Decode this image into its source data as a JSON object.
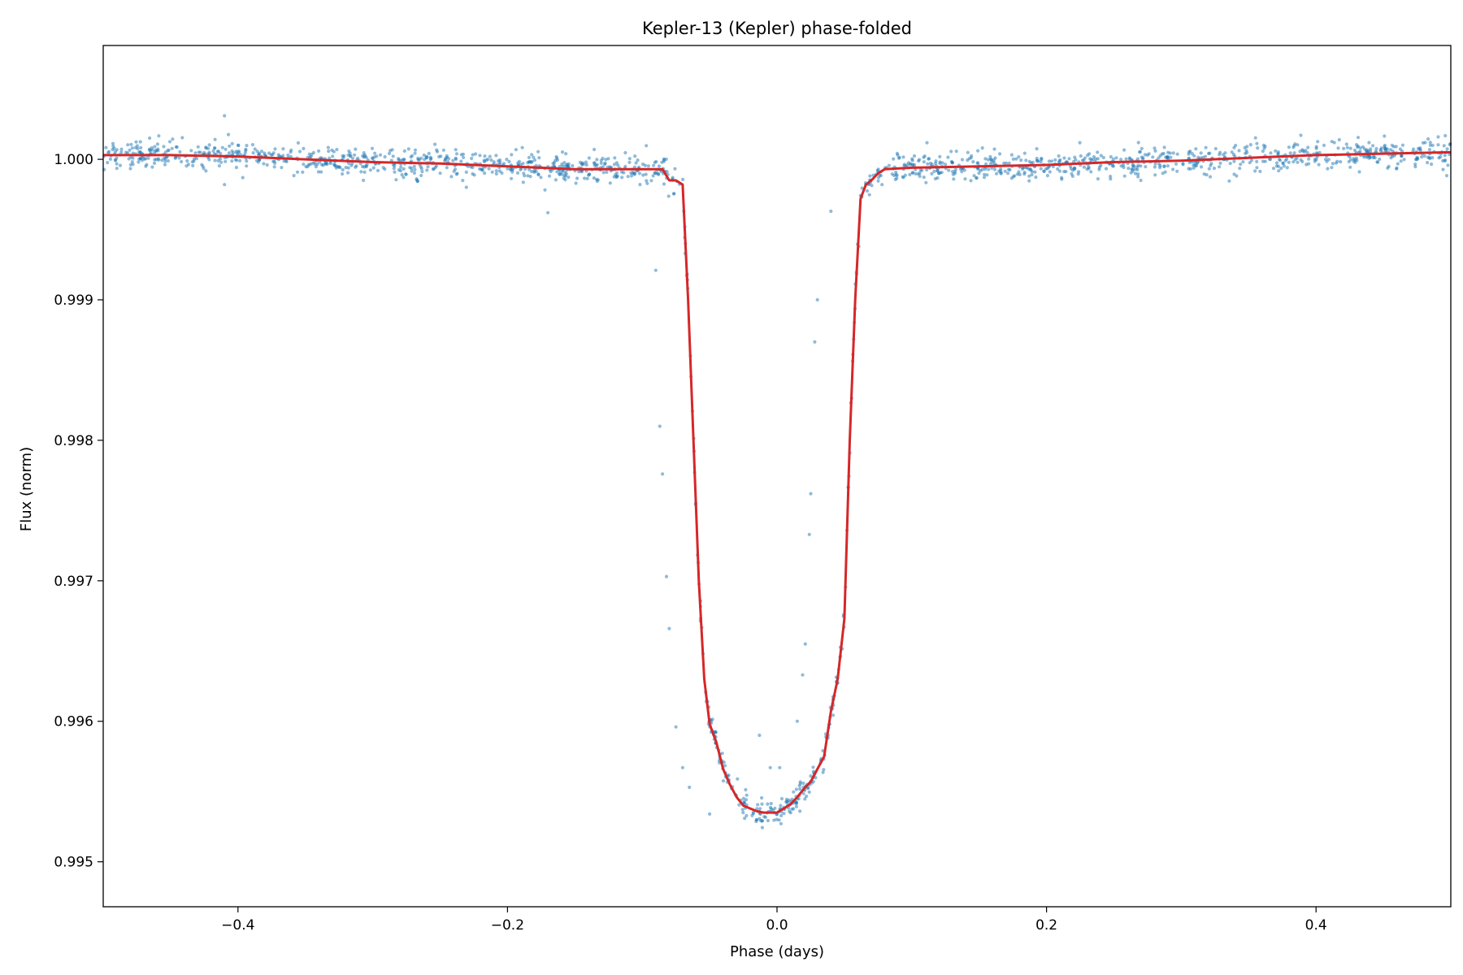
{
  "chart_data": {
    "type": "scatter",
    "title": "Kepler-13 (Kepler) phase-folded",
    "xlabel": "Phase (days)",
    "ylabel": "Flux (norm)",
    "xlim": [
      -0.5,
      0.5
    ],
    "ylim": [
      0.99468,
      1.00081
    ],
    "grid": false,
    "x_ticks": [
      -0.4,
      -0.2,
      0.0,
      0.2,
      0.4
    ],
    "x_tick_labels": [
      "−0.4",
      "−0.2",
      "0.0",
      "0.2",
      "0.4"
    ],
    "y_ticks": [
      0.995,
      0.996,
      0.997,
      0.998,
      0.999,
      1.0
    ],
    "y_tick_labels": [
      "0.995",
      "0.996",
      "0.997",
      "0.998",
      "0.999",
      "1.000"
    ],
    "series": [
      {
        "kind": "scatter",
        "color": "#1f77b4",
        "alpha": 0.5,
        "model": {
          "n_points": 1800,
          "baseline_start": 1.00003,
          "baseline_end": 1.00003,
          "baseline_dip": 0.0006,
          "noise_sigma": 5e-05,
          "transit_center": 0.0,
          "transit_depth": 0.00465,
          "ingress_start": -0.069,
          "ingress_end": -0.048,
          "egress_start": 0.048,
          "egress_end": 0.069,
          "outliers": [
            [
              -0.41,
              1.00031
            ],
            [
              -0.41,
              0.99982
            ],
            [
              -0.17,
              0.99962
            ],
            [
              -0.09,
              0.99921
            ],
            [
              -0.087,
              0.9981
            ],
            [
              -0.085,
              0.99776
            ],
            [
              -0.082,
              0.99703
            ],
            [
              -0.08,
              0.99666
            ],
            [
              -0.075,
              0.99596
            ],
            [
              -0.07,
              0.99567
            ],
            [
              -0.065,
              0.99553
            ],
            [
              -0.05,
              0.99534
            ],
            [
              0.04,
              0.99963
            ],
            [
              0.03,
              0.999
            ],
            [
              0.028,
              0.9987
            ],
            [
              0.025,
              0.99762
            ],
            [
              0.024,
              0.99733
            ],
            [
              0.021,
              0.99655
            ],
            [
              0.019,
              0.99633
            ],
            [
              0.015,
              0.996
            ],
            [
              -0.013,
              0.9959
            ],
            [
              -0.005,
              0.99567
            ],
            [
              0.002,
              0.99567
            ]
          ]
        }
      },
      {
        "kind": "line",
        "color": "#d62728",
        "x": [
          -0.5,
          -0.45,
          -0.4,
          -0.35,
          -0.3,
          -0.25,
          -0.2,
          -0.15,
          -0.1,
          -0.085,
          -0.08,
          -0.075,
          -0.07,
          -0.066,
          -0.062,
          -0.058,
          -0.054,
          -0.05,
          -0.045,
          -0.04,
          -0.035,
          -0.03,
          -0.025,
          -0.02,
          -0.015,
          -0.01,
          -0.005,
          0.0,
          0.005,
          0.01,
          0.015,
          0.02,
          0.025,
          0.03,
          0.035,
          0.04,
          0.045,
          0.05,
          0.054,
          0.058,
          0.062,
          0.066,
          0.07,
          0.075,
          0.08,
          0.1,
          0.15,
          0.2,
          0.25,
          0.3,
          0.35,
          0.4,
          0.45,
          0.5
        ],
        "y": [
          1.00003,
          1.00003,
          1.00002,
          1.0,
          0.99998,
          0.99997,
          0.99995,
          0.99993,
          0.99993,
          0.99993,
          0.99985,
          0.99985,
          0.99982,
          0.999,
          0.998,
          0.997,
          0.9963,
          0.99598,
          0.99585,
          0.99566,
          0.99555,
          0.99546,
          0.9954,
          0.99538,
          0.99536,
          0.99535,
          0.99535,
          0.99535,
          0.99538,
          0.99541,
          0.99546,
          0.99552,
          0.99557,
          0.99566,
          0.99575,
          0.99607,
          0.9963,
          0.99673,
          0.998,
          0.999,
          0.99972,
          0.99982,
          0.99985,
          0.9999,
          0.99993,
          0.99994,
          0.99995,
          0.99996,
          0.99998,
          0.99999,
          1.00001,
          1.00003,
          1.00004,
          1.00005
        ]
      }
    ]
  }
}
